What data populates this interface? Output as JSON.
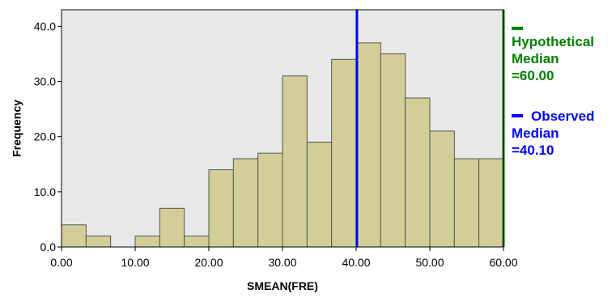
{
  "chart_data": {
    "type": "bar",
    "subtype": "histogram",
    "xlabel": "SMEAN(FRE)",
    "ylabel": "Frequency",
    "xlim": [
      0,
      60
    ],
    "ylim": [
      0,
      43
    ],
    "x_ticks": [
      "0.00",
      "10.00",
      "20.00",
      "30.00",
      "40.00",
      "50.00",
      "60.00"
    ],
    "y_ticks": [
      "0.0",
      "10.0",
      "20.0",
      "30.0",
      "40.0"
    ],
    "bin_width": 3.3333,
    "bins": [
      {
        "start": 0.0,
        "end": 3.3333,
        "count": 4
      },
      {
        "start": 3.3333,
        "end": 6.6667,
        "count": 2
      },
      {
        "start": 6.6667,
        "end": 10.0,
        "count": 0
      },
      {
        "start": 10.0,
        "end": 13.3333,
        "count": 2
      },
      {
        "start": 13.3333,
        "end": 16.6667,
        "count": 7
      },
      {
        "start": 16.6667,
        "end": 20.0,
        "count": 2
      },
      {
        "start": 20.0,
        "end": 23.3333,
        "count": 14
      },
      {
        "start": 23.3333,
        "end": 26.6667,
        "count": 16
      },
      {
        "start": 26.6667,
        "end": 30.0,
        "count": 17
      },
      {
        "start": 30.0,
        "end": 33.3333,
        "count": 31
      },
      {
        "start": 33.3333,
        "end": 36.6667,
        "count": 19
      },
      {
        "start": 36.6667,
        "end": 40.0,
        "count": 34
      },
      {
        "start": 40.0,
        "end": 43.3333,
        "count": 37
      },
      {
        "start": 43.3333,
        "end": 46.6667,
        "count": 35
      },
      {
        "start": 46.6667,
        "end": 50.0,
        "count": 27
      },
      {
        "start": 50.0,
        "end": 53.3333,
        "count": 21
      },
      {
        "start": 53.3333,
        "end": 56.6667,
        "count": 16
      },
      {
        "start": 56.6667,
        "end": 60.0,
        "count": 16
      }
    ],
    "reference_lines": [
      {
        "name": "hypothetical-median",
        "value": 60.0,
        "color": "#008000",
        "legend": [
          "Hypothetical",
          "Median",
          "=60.00"
        ]
      },
      {
        "name": "observed-median",
        "value": 40.1,
        "color": "#0000ff",
        "legend": [
          "Observed",
          "Median",
          "=40.10"
        ]
      }
    ],
    "grid": false,
    "legend_position": "right",
    "colors": {
      "plot_background": "#e8e8e8",
      "bar_fill": "#d3ce97",
      "bar_stroke": "#555555"
    }
  }
}
